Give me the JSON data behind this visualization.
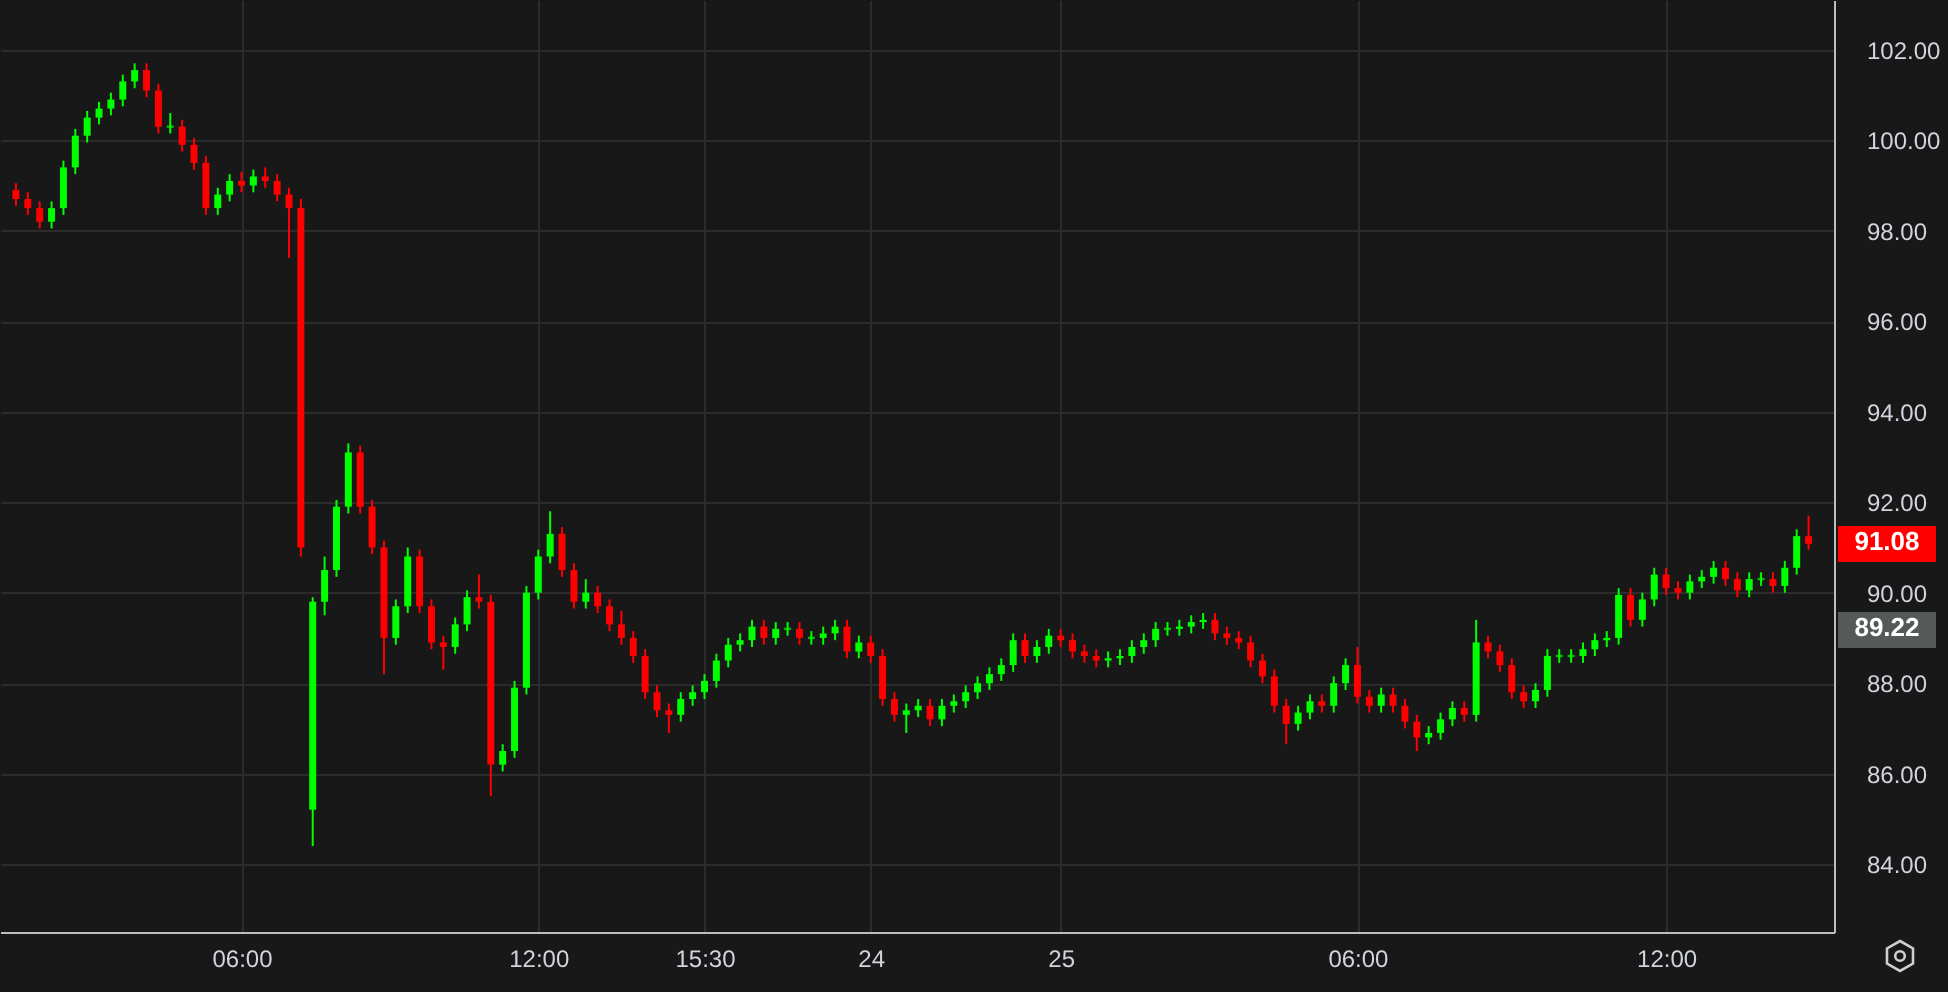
{
  "chart_data": {
    "type": "candlestick",
    "categories": [
      null,
      null,
      null,
      null,
      null,
      null,
      null,
      null,
      null,
      null,
      null,
      null,
      null,
      null,
      null,
      null,
      null,
      null,
      null,
      "06:00",
      null,
      null,
      null,
      null,
      null,
      null,
      null,
      null,
      null,
      null,
      null,
      null,
      null,
      null,
      null,
      null,
      null,
      null,
      null,
      null,
      null,
      null,
      null,
      null,
      "12:00",
      null,
      null,
      null,
      null,
      null,
      null,
      null,
      null,
      null,
      null,
      null,
      null,
      null,
      "15:30",
      null,
      null,
      null,
      null,
      null,
      null,
      null,
      null,
      null,
      null,
      null,
      null,
      null,
      "24",
      null,
      null,
      null,
      null,
      null,
      null,
      null,
      null,
      null,
      null,
      null,
      null,
      null,
      null,
      null,
      "25",
      null,
      null,
      null,
      null,
      null,
      null,
      null,
      null,
      null,
      null,
      null,
      null,
      null,
      null,
      null,
      null,
      null,
      null,
      null,
      null,
      null,
      null,
      null,
      null,
      "06:00",
      null,
      null,
      null,
      null,
      null,
      null,
      null,
      null,
      null,
      null,
      null,
      null,
      null,
      null,
      null,
      null,
      null,
      null,
      null,
      null,
      null,
      null,
      null,
      null,
      null,
      "12:00",
      null,
      null,
      null,
      null,
      null,
      null,
      null,
      null,
      null,
      null,
      null,
      null
    ],
    "ohlc": [
      [
        98.9,
        99.05,
        98.55,
        98.7
      ],
      [
        98.7,
        98.85,
        98.35,
        98.5
      ],
      [
        98.5,
        98.65,
        98.05,
        98.2
      ],
      [
        98.2,
        98.65,
        98.05,
        98.5
      ],
      [
        98.5,
        99.55,
        98.35,
        99.4
      ],
      [
        99.4,
        100.25,
        99.25,
        100.1
      ],
      [
        100.1,
        100.65,
        99.95,
        100.5
      ],
      [
        100.5,
        100.85,
        100.35,
        100.7
      ],
      [
        100.7,
        101.05,
        100.55,
        100.9
      ],
      [
        100.9,
        101.45,
        100.75,
        101.3
      ],
      [
        101.3,
        101.7,
        101.15,
        101.55
      ],
      [
        101.55,
        101.7,
        100.95,
        101.1
      ],
      [
        101.1,
        101.25,
        100.15,
        100.3
      ],
      [
        100.3,
        100.6,
        100.15,
        100.3
      ],
      [
        100.3,
        100.45,
        99.75,
        99.9
      ],
      [
        99.9,
        100.05,
        99.35,
        99.5
      ],
      [
        99.5,
        99.65,
        98.35,
        98.5
      ],
      [
        98.5,
        98.95,
        98.35,
        98.8
      ],
      [
        98.8,
        99.25,
        98.65,
        99.1
      ],
      [
        99.1,
        99.3,
        98.85,
        99.0
      ],
      [
        99.0,
        99.35,
        98.85,
        99.2
      ],
      [
        99.2,
        99.4,
        98.95,
        99.1
      ],
      [
        99.1,
        99.25,
        98.65,
        98.8
      ],
      [
        98.8,
        98.95,
        97.4,
        98.5
      ],
      [
        98.5,
        98.7,
        90.8,
        91.0
      ],
      [
        85.2,
        89.9,
        84.4,
        89.8
      ],
      [
        89.8,
        90.8,
        89.5,
        90.5
      ],
      [
        90.5,
        92.05,
        90.35,
        91.9
      ],
      [
        91.9,
        93.3,
        91.75,
        93.1
      ],
      [
        93.1,
        93.25,
        91.75,
        91.9
      ],
      [
        91.9,
        92.05,
        90.85,
        91.0
      ],
      [
        91.0,
        91.15,
        88.2,
        89.0
      ],
      [
        89.0,
        89.85,
        88.85,
        89.7
      ],
      [
        89.7,
        91.0,
        89.55,
        90.8
      ],
      [
        90.8,
        90.95,
        89.55,
        89.7
      ],
      [
        89.7,
        89.85,
        88.75,
        88.9
      ],
      [
        88.9,
        89.05,
        88.3,
        88.8
      ],
      [
        88.8,
        89.45,
        88.65,
        89.3
      ],
      [
        89.3,
        90.05,
        89.15,
        89.9
      ],
      [
        89.9,
        90.4,
        89.65,
        89.8
      ],
      [
        89.8,
        89.95,
        85.5,
        86.2
      ],
      [
        86.2,
        86.65,
        86.05,
        86.5
      ],
      [
        86.5,
        88.05,
        86.35,
        87.9
      ],
      [
        87.9,
        90.15,
        87.75,
        90.0
      ],
      [
        90.0,
        90.95,
        89.85,
        90.8
      ],
      [
        90.8,
        91.8,
        90.65,
        91.3
      ],
      [
        91.3,
        91.45,
        90.35,
        90.5
      ],
      [
        90.5,
        90.65,
        89.65,
        89.8
      ],
      [
        89.8,
        90.3,
        89.65,
        90.0
      ],
      [
        90.0,
        90.15,
        89.55,
        89.7
      ],
      [
        89.7,
        89.85,
        89.15,
        89.3
      ],
      [
        89.3,
        89.6,
        88.85,
        89.0
      ],
      [
        89.0,
        89.15,
        88.45,
        88.6
      ],
      [
        88.6,
        88.75,
        87.65,
        87.8
      ],
      [
        87.8,
        87.95,
        87.25,
        87.4
      ],
      [
        87.4,
        87.55,
        86.9,
        87.3
      ],
      [
        87.3,
        87.8,
        87.15,
        87.65
      ],
      [
        87.65,
        87.95,
        87.5,
        87.8
      ],
      [
        87.8,
        88.2,
        87.65,
        88.05
      ],
      [
        88.05,
        88.65,
        87.9,
        88.5
      ],
      [
        88.5,
        89.0,
        88.35,
        88.85
      ],
      [
        88.85,
        89.1,
        88.7,
        88.95
      ],
      [
        88.95,
        89.4,
        88.8,
        89.25
      ],
      [
        89.25,
        89.4,
        88.85,
        89.0
      ],
      [
        89.0,
        89.35,
        88.85,
        89.2
      ],
      [
        89.2,
        89.35,
        89.05,
        89.2
      ],
      [
        89.2,
        89.35,
        88.85,
        89.0
      ],
      [
        89.0,
        89.15,
        88.85,
        89.0
      ],
      [
        89.0,
        89.25,
        88.85,
        89.1
      ],
      [
        89.1,
        89.4,
        88.95,
        89.25
      ],
      [
        89.25,
        89.4,
        88.55,
        88.7
      ],
      [
        88.7,
        89.05,
        88.55,
        88.9
      ],
      [
        88.9,
        89.05,
        88.45,
        88.6
      ],
      [
        88.6,
        88.75,
        87.5,
        87.65
      ],
      [
        87.65,
        87.8,
        87.15,
        87.3
      ],
      [
        87.3,
        87.55,
        86.9,
        87.4
      ],
      [
        87.4,
        87.65,
        87.25,
        87.5
      ],
      [
        87.5,
        87.65,
        87.05,
        87.2
      ],
      [
        87.2,
        87.65,
        87.05,
        87.5
      ],
      [
        87.5,
        87.75,
        87.35,
        87.6
      ],
      [
        87.6,
        87.95,
        87.45,
        87.8
      ],
      [
        87.8,
        88.15,
        87.65,
        88.0
      ],
      [
        88.0,
        88.35,
        87.85,
        88.2
      ],
      [
        88.2,
        88.55,
        88.05,
        88.4
      ],
      [
        88.4,
        89.1,
        88.25,
        88.95
      ],
      [
        88.95,
        89.1,
        88.45,
        88.6
      ],
      [
        88.6,
        88.95,
        88.45,
        88.8
      ],
      [
        88.8,
        89.2,
        88.65,
        89.05
      ],
      [
        89.05,
        89.2,
        88.8,
        88.95
      ],
      [
        88.95,
        89.1,
        88.55,
        88.7
      ],
      [
        88.7,
        88.85,
        88.45,
        88.6
      ],
      [
        88.6,
        88.75,
        88.35,
        88.5
      ],
      [
        88.5,
        88.7,
        88.35,
        88.55
      ],
      [
        88.55,
        88.75,
        88.4,
        88.6
      ],
      [
        88.6,
        88.95,
        88.45,
        88.8
      ],
      [
        88.8,
        89.1,
        88.65,
        88.95
      ],
      [
        88.95,
        89.35,
        88.8,
        89.2
      ],
      [
        89.2,
        89.35,
        89.05,
        89.2
      ],
      [
        89.2,
        89.4,
        89.05,
        89.25
      ],
      [
        89.25,
        89.5,
        89.1,
        89.35
      ],
      [
        89.35,
        89.55,
        89.2,
        89.4
      ],
      [
        89.4,
        89.55,
        88.95,
        89.1
      ],
      [
        89.1,
        89.25,
        88.85,
        89.0
      ],
      [
        89.0,
        89.15,
        88.75,
        88.9
      ],
      [
        88.9,
        89.05,
        88.35,
        88.5
      ],
      [
        88.5,
        88.65,
        88.0,
        88.15
      ],
      [
        88.15,
        88.3,
        87.35,
        87.5
      ],
      [
        87.5,
        87.65,
        86.65,
        87.1
      ],
      [
        87.1,
        87.5,
        86.95,
        87.35
      ],
      [
        87.35,
        87.75,
        87.2,
        87.6
      ],
      [
        87.6,
        87.75,
        87.35,
        87.5
      ],
      [
        87.5,
        88.15,
        87.35,
        88.0
      ],
      [
        88.0,
        88.55,
        87.85,
        88.4
      ],
      [
        88.4,
        88.8,
        87.55,
        87.7
      ],
      [
        87.7,
        87.85,
        87.35,
        87.5
      ],
      [
        87.5,
        87.9,
        87.35,
        87.75
      ],
      [
        87.75,
        87.9,
        87.35,
        87.5
      ],
      [
        87.5,
        87.65,
        87.0,
        87.15
      ],
      [
        87.15,
        87.3,
        86.5,
        86.8
      ],
      [
        86.8,
        87.05,
        86.65,
        86.9
      ],
      [
        86.9,
        87.35,
        86.75,
        87.2
      ],
      [
        87.2,
        87.6,
        87.05,
        87.45
      ],
      [
        87.45,
        87.6,
        87.15,
        87.3
      ],
      [
        87.3,
        89.4,
        87.15,
        88.9
      ],
      [
        88.9,
        89.05,
        88.55,
        88.7
      ],
      [
        88.7,
        88.85,
        88.25,
        88.4
      ],
      [
        88.4,
        88.55,
        87.65,
        87.8
      ],
      [
        87.8,
        87.95,
        87.45,
        87.6
      ],
      [
        87.6,
        88.0,
        87.45,
        87.85
      ],
      [
        87.85,
        88.75,
        87.7,
        88.6
      ],
      [
        88.6,
        88.75,
        88.45,
        88.6
      ],
      [
        88.6,
        88.75,
        88.45,
        88.6
      ],
      [
        88.6,
        88.9,
        88.45,
        88.75
      ],
      [
        88.75,
        89.1,
        88.6,
        88.95
      ],
      [
        88.95,
        89.15,
        88.8,
        89.0
      ],
      [
        89.0,
        90.1,
        88.85,
        89.95
      ],
      [
        89.95,
        90.1,
        89.25,
        89.4
      ],
      [
        89.4,
        90.0,
        89.25,
        89.85
      ],
      [
        89.85,
        90.55,
        89.7,
        90.4
      ],
      [
        90.4,
        90.55,
        89.95,
        90.1
      ],
      [
        90.1,
        90.25,
        89.85,
        90.0
      ],
      [
        90.0,
        90.4,
        89.85,
        90.25
      ],
      [
        90.25,
        90.5,
        90.1,
        90.35
      ],
      [
        90.35,
        90.7,
        90.2,
        90.55
      ],
      [
        90.55,
        90.7,
        90.15,
        90.3
      ],
      [
        90.3,
        90.45,
        89.9,
        90.05
      ],
      [
        90.05,
        90.45,
        89.9,
        90.3
      ],
      [
        90.3,
        90.45,
        90.15,
        90.3
      ],
      [
        90.3,
        90.45,
        90.0,
        90.15
      ],
      [
        90.15,
        90.7,
        90.0,
        90.55
      ],
      [
        90.55,
        91.4,
        90.4,
        91.25
      ],
      [
        91.25,
        91.7,
        90.95,
        91.08
      ]
    ],
    "ylim": [
      82.5,
      103.1
    ],
    "yticks": [
      {
        "value": 84,
        "label": "84.00"
      },
      {
        "value": 86,
        "label": "86.00"
      },
      {
        "value": 88,
        "label": "88.00"
      },
      {
        "value": 90,
        "label": "90.00"
      },
      {
        "value": 92,
        "label": "92.00"
      },
      {
        "value": 94,
        "label": "94.00"
      },
      {
        "value": 96,
        "label": "96.00"
      },
      {
        "value": 98,
        "label": "98.00"
      },
      {
        "value": 100,
        "label": "100.00"
      },
      {
        "value": 102,
        "label": "102.00"
      }
    ],
    "grid": true,
    "annotations": [
      "91.08",
      "89.22"
    ]
  }
}
